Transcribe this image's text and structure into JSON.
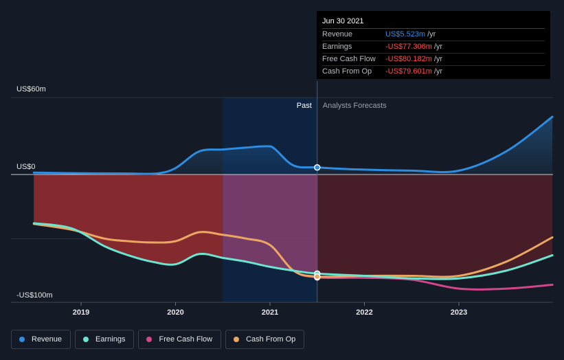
{
  "tooltip": {
    "date": "Jun 30 2021",
    "rows": [
      {
        "label": "Revenue",
        "value": "US$5.523m",
        "unit": "/yr",
        "color": "#2e8de0"
      },
      {
        "label": "Earnings",
        "value": "-US$77.306m",
        "unit": "/yr",
        "color": "#ff4d4d"
      },
      {
        "label": "Free Cash Flow",
        "value": "-US$80.182m",
        "unit": "/yr",
        "color": "#ff4d4d"
      },
      {
        "label": "Cash From Op",
        "value": "-US$79.601m",
        "unit": "/yr",
        "color": "#ff4d4d"
      }
    ]
  },
  "legend": [
    {
      "label": "Revenue",
      "color": "#2e8de0",
      "icon": "revenue-dot-icon"
    },
    {
      "label": "Earnings",
      "color": "#6be4d0",
      "icon": "earnings-dot-icon"
    },
    {
      "label": "Free Cash Flow",
      "color": "#d2478b",
      "icon": "free-cash-flow-dot-icon"
    },
    {
      "label": "Cash From Op",
      "color": "#e9a760",
      "icon": "cash-from-op-dot-icon"
    }
  ],
  "chart_data": {
    "type": "line",
    "y_unit_labels": {
      "top": "US$60m",
      "zero": "US$0",
      "bottom": "-US$100m"
    },
    "ylim": [
      -100,
      60
    ],
    "xlim": [
      2018.5,
      2023.99
    ],
    "x_ticks": [
      {
        "value": 2019,
        "label": "2019"
      },
      {
        "value": 2020,
        "label": "2020"
      },
      {
        "value": 2021,
        "label": "2021"
      },
      {
        "value": 2022,
        "label": "2022"
      },
      {
        "value": 2023,
        "label": "2023"
      }
    ],
    "past_label": "Past",
    "forecast_label": "Analysts Forecasts",
    "past_highlight_start": 2020.5,
    "divider_x": 2021.5,
    "grid": true,
    "series": [
      {
        "name": "Revenue",
        "color": "#2e8de0",
        "x": [
          2018.5,
          2019.0,
          2019.5,
          2019.8,
          2020.0,
          2020.25,
          2020.5,
          2020.75,
          2020.97,
          2021.05,
          2021.25,
          2021.5,
          2021.9,
          2022.5,
          2023.0,
          2023.5,
          2023.99
        ],
        "y": [
          1.5,
          1.0,
          0.8,
          0.8,
          5.0,
          18.0,
          19.5,
          21.0,
          22.0,
          20.0,
          7.0,
          5.5,
          4.0,
          3.0,
          3.0,
          18.0,
          45.0
        ]
      },
      {
        "name": "Earnings",
        "color": "#6be4d0",
        "x": [
          2018.5,
          2018.9,
          2019.25,
          2019.5,
          2019.75,
          2020.0,
          2020.25,
          2020.5,
          2020.75,
          2021.0,
          2021.25,
          2021.5,
          2022.0,
          2022.5,
          2023.0,
          2023.5,
          2023.99
        ],
        "y": [
          -38.0,
          -42.0,
          -56.0,
          -63.0,
          -68.0,
          -70.0,
          -62.0,
          -65.0,
          -68.0,
          -72.0,
          -75.0,
          -77.3,
          -79.0,
          -81.0,
          -81.0,
          -75.0,
          -63.0
        ]
      },
      {
        "name": "Free Cash Flow",
        "color": "#d2478b",
        "x": [
          2018.5,
          2018.9,
          2019.25,
          2019.5,
          2019.75,
          2020.0,
          2020.25,
          2020.5,
          2020.75,
          2021.0,
          2021.25,
          2021.5,
          2022.0,
          2022.5,
          2023.0,
          2023.5,
          2023.99
        ],
        "y": [
          -38.5,
          -43.0,
          -50.0,
          -52.0,
          -53.0,
          -52.0,
          -45.0,
          -47.0,
          -50.0,
          -55.0,
          -75.0,
          -80.2,
          -80.5,
          -82.0,
          -89.0,
          -89.0,
          -86.0
        ]
      },
      {
        "name": "Cash From Op",
        "color": "#e9a760",
        "x": [
          2018.5,
          2018.9,
          2019.25,
          2019.5,
          2019.75,
          2020.0,
          2020.25,
          2020.5,
          2020.75,
          2021.0,
          2021.25,
          2021.5,
          2022.0,
          2022.5,
          2023.0,
          2023.5,
          2023.99
        ],
        "y": [
          -38.5,
          -43.0,
          -50.0,
          -52.0,
          -53.0,
          -52.0,
          -45.0,
          -47.0,
          -50.0,
          -55.0,
          -75.0,
          -79.6,
          -79.0,
          -79.0,
          -79.0,
          -68.0,
          -49.0
        ]
      }
    ]
  }
}
